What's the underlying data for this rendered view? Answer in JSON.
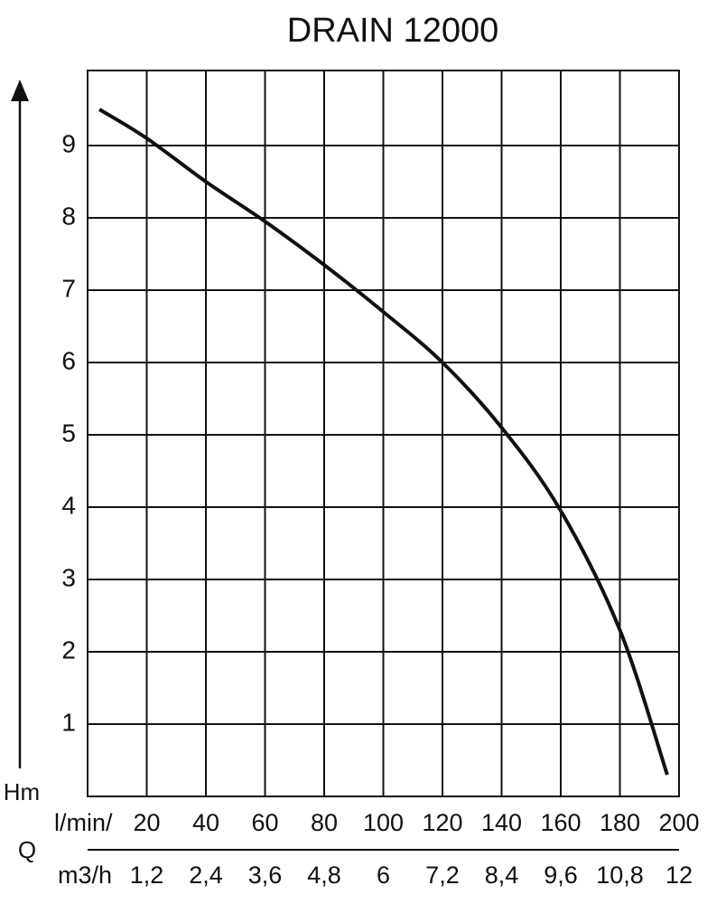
{
  "chart_data": {
    "type": "line",
    "title": "DRAIN 12000",
    "y_label": "Hm",
    "x_label": "Q",
    "x_unit": "l/min/",
    "x2_unit": "m3/h",
    "x": [
      4,
      20,
      40,
      60,
      80,
      100,
      120,
      140,
      160,
      180,
      196
    ],
    "values": [
      9.5,
      9.1,
      8.5,
      7.95,
      7.35,
      6.7,
      6.0,
      5.1,
      3.95,
      2.3,
      0.3
    ],
    "color": "#111111",
    "xlim": [
      0,
      200
    ],
    "xticks": [
      20,
      40,
      60,
      80,
      100,
      120,
      140,
      160,
      180,
      200
    ],
    "x2lim": [
      0,
      12
    ],
    "x2ticks": [
      {
        "value": 1.2,
        "label": "1,2"
      },
      {
        "value": 2.4,
        "label": "2,4"
      },
      {
        "value": 3.6,
        "label": "3,6"
      },
      {
        "value": 4.8,
        "label": "4,8"
      },
      6,
      {
        "value": 7.2,
        "label": "7,2"
      },
      {
        "value": 8.4,
        "label": "8,4"
      },
      {
        "value": 9.6,
        "label": "9,6"
      },
      {
        "value": 10.8,
        "label": "10,8"
      },
      12
    ],
    "ylim": [
      0,
      10
    ],
    "yticks": [
      1,
      2,
      3,
      4,
      5,
      6,
      7,
      8,
      9
    ],
    "grid": true
  }
}
